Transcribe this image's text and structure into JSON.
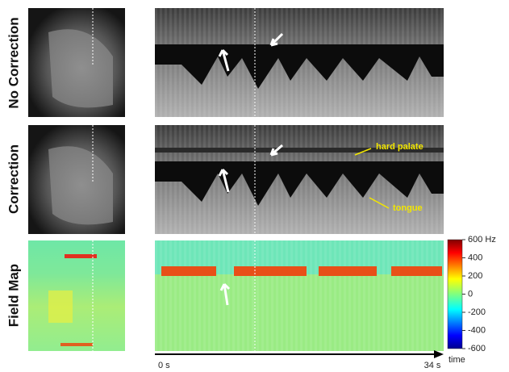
{
  "rows": [
    {
      "label": "No Correction"
    },
    {
      "label": "Correction"
    },
    {
      "label": "Field Map"
    }
  ],
  "annotations": {
    "hard_palate": "hard palate",
    "tongue": "tongue"
  },
  "colorbar": {
    "lim": [
      -600,
      600
    ],
    "ticks": [
      {
        "value": 600,
        "label": "600 Hz"
      },
      400,
      200,
      0,
      -200,
      -400,
      -600
    ]
  },
  "time_axis": {
    "lim": [
      0,
      34
    ],
    "ticks": [
      {
        "value": 0,
        "label": "0 s"
      },
      {
        "value": 34,
        "label": "34 s"
      }
    ],
    "label": "time"
  }
}
